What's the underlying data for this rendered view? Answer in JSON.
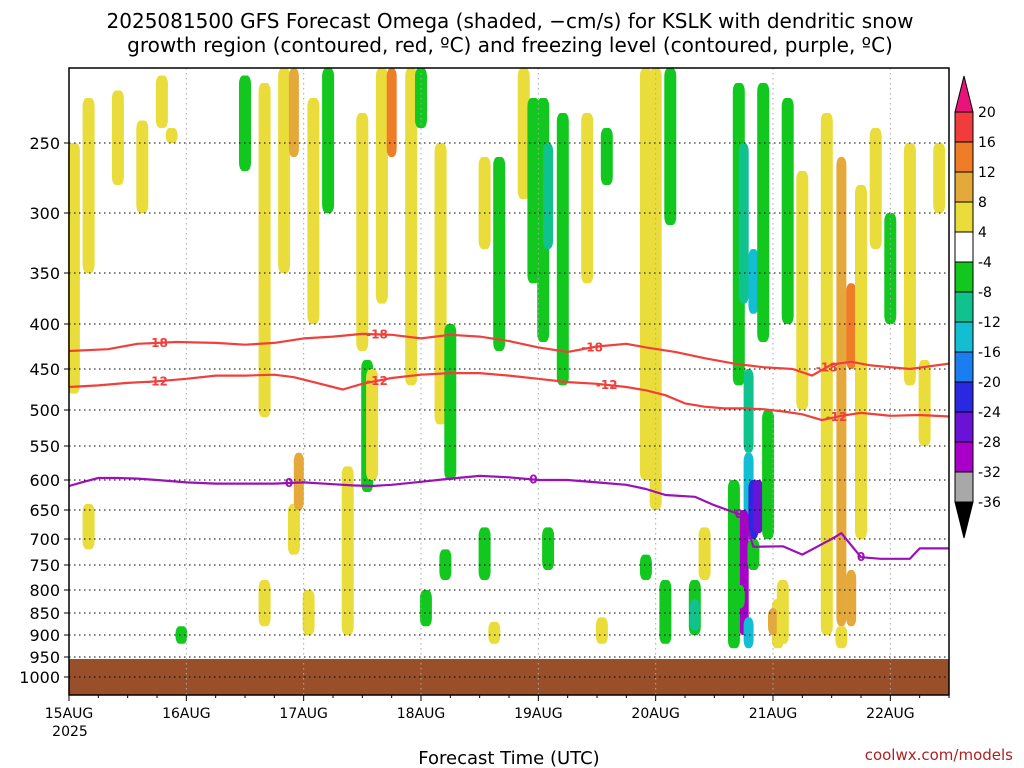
{
  "title_line1": "2025081500 GFS Forecast Omega (shaded, −cm/s) for KSLK with dendritic snow",
  "title_line2": "growth region (contoured, red, ºC) and freezing level (contoured, purple, ºC)",
  "credit": "coolwx.com/models",
  "chart_data": {
    "type": "heatmap",
    "title": "2025081500 GFS Forecast Omega (shaded, −cm/s) for KSLK with dendritic snow growth region (contoured, red, ºC) and freezing level (contoured, purple, ºC)",
    "xlabel": "Forecast Time (UTC)",
    "ylabel": "",
    "x_ticks": [
      "15AUG",
      "16AUG",
      "17AUG",
      "18AUG",
      "19AUG",
      "20AUG",
      "21AUG",
      "22AUG"
    ],
    "x_year": "2025",
    "x_range_hours": [
      0,
      180
    ],
    "y_axis": "pressure (hPa), inverted, log-like",
    "y_ticks": [
      250,
      300,
      350,
      400,
      450,
      500,
      550,
      600,
      650,
      700,
      750,
      800,
      850,
      900,
      950,
      1000
    ],
    "y_range": [
      200,
      1050
    ],
    "grid": true,
    "colorbar": {
      "labels": [
        "20",
        "16",
        "12",
        "8",
        "4",
        "-4",
        "-8",
        "-12",
        "-16",
        "-20",
        "-24",
        "-28",
        "-32",
        "-36"
      ],
      "bins": [
        {
          "range": "> 20",
          "color": "#e8147a"
        },
        {
          "range": "16 to 20",
          "color": "#f03c3c"
        },
        {
          "range": "12 to 16",
          "color": "#ef7d28"
        },
        {
          "range": "8 to 12",
          "color": "#e5a83a"
        },
        {
          "range": "4 to 8",
          "color": "#eadc3a"
        },
        {
          "range": "-4 to 4",
          "color": "#ffffff"
        },
        {
          "range": "-8 to -4",
          "color": "#12c81e"
        },
        {
          "range": "-12 to -8",
          "color": "#10c38e"
        },
        {
          "range": "-16 to -12",
          "color": "#14bed2"
        },
        {
          "range": "-20 to -16",
          "color": "#1a7ef0"
        },
        {
          "range": "-24 to -20",
          "color": "#2a28e0"
        },
        {
          "range": "-28 to -24",
          "color": "#6a12d6"
        },
        {
          "range": "-32 to -28",
          "color": "#a800c8"
        },
        {
          "range": "-36 to -32",
          "color": "#a8a8a8"
        },
        {
          "range": "< -36",
          "color": "#000000"
        }
      ]
    },
    "shaded_regions": [
      {
        "hour": 1,
        "p_top": 250,
        "p_bot": 480,
        "value": 6
      },
      {
        "hour": 4,
        "p_top": 220,
        "p_bot": 350,
        "value": 6
      },
      {
        "hour": 10,
        "p_top": 215,
        "p_bot": 280,
        "value": 6
      },
      {
        "hour": 15,
        "p_top": 235,
        "p_bot": 300,
        "value": 6
      },
      {
        "hour": 19,
        "p_top": 205,
        "p_bot": 240,
        "value": 6
      },
      {
        "hour": 21,
        "p_top": 240,
        "p_bot": 250,
        "value": 6
      },
      {
        "hour": 36,
        "p_top": 205,
        "p_bot": 270,
        "value": -6
      },
      {
        "hour": 40,
        "p_top": 210,
        "p_bot": 510,
        "value": 6
      },
      {
        "hour": 44,
        "p_top": 200,
        "p_bot": 350,
        "value": 6
      },
      {
        "hour": 46,
        "p_top": 200,
        "p_bot": 260,
        "value": 10
      },
      {
        "hour": 50,
        "p_top": 220,
        "p_bot": 400,
        "value": 6
      },
      {
        "hour": 53,
        "p_top": 200,
        "p_bot": 300,
        "value": -6
      },
      {
        "hour": 60,
        "p_top": 230,
        "p_bot": 430,
        "value": 6
      },
      {
        "hour": 61,
        "p_top": 440,
        "p_bot": 620,
        "value": -6
      },
      {
        "hour": 64,
        "p_top": 200,
        "p_bot": 380,
        "value": 6
      },
      {
        "hour": 66,
        "p_top": 200,
        "p_bot": 260,
        "value": 14
      },
      {
        "hour": 70,
        "p_top": 200,
        "p_bot": 470,
        "value": 6
      },
      {
        "hour": 72,
        "p_top": 200,
        "p_bot": 240,
        "value": -6
      },
      {
        "hour": 76,
        "p_top": 250,
        "p_bot": 520,
        "value": 6
      },
      {
        "hour": 78,
        "p_top": 400,
        "p_bot": 600,
        "value": -6
      },
      {
        "hour": 85,
        "p_top": 260,
        "p_bot": 330,
        "value": 6
      },
      {
        "hour": 88,
        "p_top": 260,
        "p_bot": 430,
        "value": -6
      },
      {
        "hour": 93,
        "p_top": 200,
        "p_bot": 290,
        "value": 6
      },
      {
        "hour": 95,
        "p_top": 220,
        "p_bot": 360,
        "value": -6
      },
      {
        "hour": 97,
        "p_top": 220,
        "p_bot": 420,
        "value": -6
      },
      {
        "hour": 98,
        "p_top": 250,
        "p_bot": 330,
        "value": -10
      },
      {
        "hour": 101,
        "p_top": 230,
        "p_bot": 470,
        "value": -6
      },
      {
        "hour": 106,
        "p_top": 230,
        "p_bot": 360,
        "value": 6
      },
      {
        "hour": 110,
        "p_top": 240,
        "p_bot": 280,
        "value": -6
      },
      {
        "hour": 118,
        "p_top": 200,
        "p_bot": 600,
        "value": 6
      },
      {
        "hour": 120,
        "p_top": 200,
        "p_bot": 650,
        "value": 6
      },
      {
        "hour": 123,
        "p_top": 200,
        "p_bot": 310,
        "value": -6
      },
      {
        "hour": 137,
        "p_top": 210,
        "p_bot": 470,
        "value": -6
      },
      {
        "hour": 138,
        "p_top": 250,
        "p_bot": 380,
        "value": -10
      },
      {
        "hour": 140,
        "p_top": 330,
        "p_bot": 390,
        "value": -14
      },
      {
        "hour": 142,
        "p_top": 210,
        "p_bot": 420,
        "value": -6
      },
      {
        "hour": 147,
        "p_top": 220,
        "p_bot": 400,
        "value": -6
      },
      {
        "hour": 150,
        "p_top": 270,
        "p_bot": 500,
        "value": 6
      },
      {
        "hour": 155,
        "p_top": 230,
        "p_bot": 900,
        "value": 6
      },
      {
        "hour": 158,
        "p_top": 260,
        "p_bot": 880,
        "value": 10
      },
      {
        "hour": 160,
        "p_top": 360,
        "p_bot": 450,
        "value": 16
      },
      {
        "hour": 162,
        "p_top": 280,
        "p_bot": 700,
        "value": 6
      },
      {
        "hour": 165,
        "p_top": 240,
        "p_bot": 330,
        "value": 6
      },
      {
        "hour": 168,
        "p_top": 300,
        "p_bot": 400,
        "value": -6
      },
      {
        "hour": 172,
        "p_top": 250,
        "p_bot": 470,
        "value": 6
      },
      {
        "hour": 178,
        "p_top": 250,
        "p_bot": 300,
        "value": 6
      },
      {
        "hour": 139,
        "p_top": 450,
        "p_bot": 560,
        "value": -12
      },
      {
        "hour": 139,
        "p_top": 560,
        "p_bot": 700,
        "value": -16
      },
      {
        "hour": 140,
        "p_top": 600,
        "p_bot": 700,
        "value": -22
      },
      {
        "hour": 138,
        "p_top": 650,
        "p_bot": 900,
        "value": -30
      },
      {
        "hour": 141,
        "p_top": 600,
        "p_bot": 690,
        "value": -26
      },
      {
        "hour": 139,
        "p_top": 860,
        "p_bot": 930,
        "value": -14
      },
      {
        "hour": 136,
        "p_top": 600,
        "p_bot": 930,
        "value": -6
      },
      {
        "hour": 143,
        "p_top": 500,
        "p_bot": 700,
        "value": -6
      },
      {
        "hour": 145,
        "p_top": 820,
        "p_bot": 930,
        "value": 6
      },
      {
        "hour": 144,
        "p_top": 840,
        "p_bot": 900,
        "value": 12
      },
      {
        "hour": 137,
        "p_top": 790,
        "p_bot": 840,
        "value": -6
      },
      {
        "hour": 128,
        "p_top": 780,
        "p_bot": 900,
        "value": -6
      },
      {
        "hour": 128,
        "p_top": 820,
        "p_bot": 890,
        "value": -10
      },
      {
        "hour": 4,
        "p_top": 640,
        "p_bot": 720,
        "value": 6
      },
      {
        "hour": 23,
        "p_top": 880,
        "p_bot": 920,
        "value": -6
      },
      {
        "hour": 40,
        "p_top": 780,
        "p_bot": 880,
        "value": 6
      },
      {
        "hour": 46,
        "p_top": 640,
        "p_bot": 730,
        "value": 6
      },
      {
        "hour": 47,
        "p_top": 560,
        "p_bot": 650,
        "value": 10
      },
      {
        "hour": 49,
        "p_top": 800,
        "p_bot": 900,
        "value": 6
      },
      {
        "hour": 57,
        "p_top": 580,
        "p_bot": 900,
        "value": 6
      },
      {
        "hour": 62,
        "p_top": 450,
        "p_bot": 600,
        "value": 6
      },
      {
        "hour": 73,
        "p_top": 800,
        "p_bot": 880,
        "value": -6
      },
      {
        "hour": 77,
        "p_top": 720,
        "p_bot": 780,
        "value": -6
      },
      {
        "hour": 85,
        "p_top": 680,
        "p_bot": 780,
        "value": -6
      },
      {
        "hour": 87,
        "p_top": 870,
        "p_bot": 920,
        "value": 6
      },
      {
        "hour": 109,
        "p_top": 860,
        "p_bot": 920,
        "value": 6
      },
      {
        "hour": 98,
        "p_top": 680,
        "p_bot": 760,
        "value": -6
      },
      {
        "hour": 118,
        "p_top": 730,
        "p_bot": 780,
        "value": -6
      },
      {
        "hour": 122,
        "p_top": 780,
        "p_bot": 920,
        "value": -6
      },
      {
        "hour": 130,
        "p_top": 680,
        "p_bot": 780,
        "value": 6
      },
      {
        "hour": 146,
        "p_top": 780,
        "p_bot": 920,
        "value": 6
      },
      {
        "hour": 140,
        "p_top": 700,
        "p_bot": 760,
        "value": -8
      },
      {
        "hour": 158,
        "p_top": 880,
        "p_bot": 930,
        "value": 6
      },
      {
        "hour": 160,
        "p_top": 760,
        "p_bot": 880,
        "value": 10
      },
      {
        "hour": 175,
        "p_top": 440,
        "p_bot": 550,
        "value": 6
      }
    ],
    "surface": {
      "p_top": 955,
      "color": "#99502a"
    },
    "contours": [
      {
        "name": "dgz -18°C",
        "color": "#f0403c",
        "label": "-18",
        "label_hours": [
          18,
          63,
          107,
          155
        ],
        "points": [
          [
            0,
            430
          ],
          [
            8,
            428
          ],
          [
            14,
            422
          ],
          [
            22,
            420
          ],
          [
            30,
            421
          ],
          [
            36,
            423
          ],
          [
            42,
            421
          ],
          [
            48,
            416
          ],
          [
            54,
            414
          ],
          [
            60,
            411
          ],
          [
            66,
            412
          ],
          [
            72,
            416
          ],
          [
            78,
            412
          ],
          [
            84,
            414
          ],
          [
            90,
            419
          ],
          [
            96,
            426
          ],
          [
            102,
            431
          ],
          [
            108,
            425
          ],
          [
            114,
            422
          ],
          [
            118,
            426
          ],
          [
            124,
            431
          ],
          [
            130,
            438
          ],
          [
            136,
            444
          ],
          [
            142,
            448
          ],
          [
            148,
            450
          ],
          [
            152,
            458
          ],
          [
            156,
            445
          ],
          [
            160,
            442
          ],
          [
            164,
            446
          ],
          [
            168,
            448
          ],
          [
            172,
            450
          ],
          [
            176,
            447
          ],
          [
            180,
            444
          ]
        ]
      },
      {
        "name": "dgz -12°C",
        "color": "#f0403c",
        "label": "-12",
        "label_hours": [
          18,
          63,
          110,
          157
        ],
        "points": [
          [
            0,
            472
          ],
          [
            6,
            470
          ],
          [
            12,
            467
          ],
          [
            18,
            465
          ],
          [
            24,
            462
          ],
          [
            30,
            458
          ],
          [
            36,
            458
          ],
          [
            42,
            457
          ],
          [
            46,
            460
          ],
          [
            50,
            466
          ],
          [
            56,
            475
          ],
          [
            60,
            468
          ],
          [
            66,
            461
          ],
          [
            72,
            457
          ],
          [
            78,
            455
          ],
          [
            84,
            455
          ],
          [
            90,
            458
          ],
          [
            96,
            462
          ],
          [
            102,
            466
          ],
          [
            108,
            468
          ],
          [
            114,
            472
          ],
          [
            118,
            476
          ],
          [
            122,
            482
          ],
          [
            126,
            492
          ],
          [
            130,
            496
          ],
          [
            134,
            498
          ],
          [
            138,
            498
          ],
          [
            142,
            499
          ],
          [
            146,
            502
          ],
          [
            150,
            506
          ],
          [
            154,
            514
          ],
          [
            158,
            508
          ],
          [
            162,
            504
          ],
          [
            168,
            508
          ],
          [
            174,
            507
          ],
          [
            180,
            509
          ]
        ]
      },
      {
        "name": "freezing level 0°C",
        "color": "#9c10b8",
        "label": "0",
        "label_hours": [
          45,
          95,
          137,
          162
        ],
        "points": [
          [
            0,
            610
          ],
          [
            3,
            603
          ],
          [
            6,
            597
          ],
          [
            10,
            597
          ],
          [
            14,
            598
          ],
          [
            18,
            600
          ],
          [
            24,
            604
          ],
          [
            30,
            606
          ],
          [
            36,
            606
          ],
          [
            42,
            606
          ],
          [
            48,
            604
          ],
          [
            54,
            607
          ],
          [
            58,
            609
          ],
          [
            62,
            610
          ],
          [
            66,
            608
          ],
          [
            72,
            603
          ],
          [
            78,
            598
          ],
          [
            84,
            594
          ],
          [
            90,
            596
          ],
          [
            96,
            600
          ],
          [
            102,
            600
          ],
          [
            108,
            604
          ],
          [
            114,
            608
          ],
          [
            118,
            615
          ],
          [
            122,
            625
          ],
          [
            128,
            628
          ],
          [
            132,
            642
          ],
          [
            136,
            654
          ],
          [
            138,
            660
          ],
          [
            140,
            715
          ],
          [
            146,
            714
          ],
          [
            150,
            730
          ],
          [
            154,
            710
          ],
          [
            156,
            700
          ],
          [
            158,
            690
          ],
          [
            162,
            735
          ],
          [
            166,
            738
          ],
          [
            172,
            738
          ],
          [
            174,
            718
          ],
          [
            180,
            718
          ]
        ]
      }
    ]
  }
}
